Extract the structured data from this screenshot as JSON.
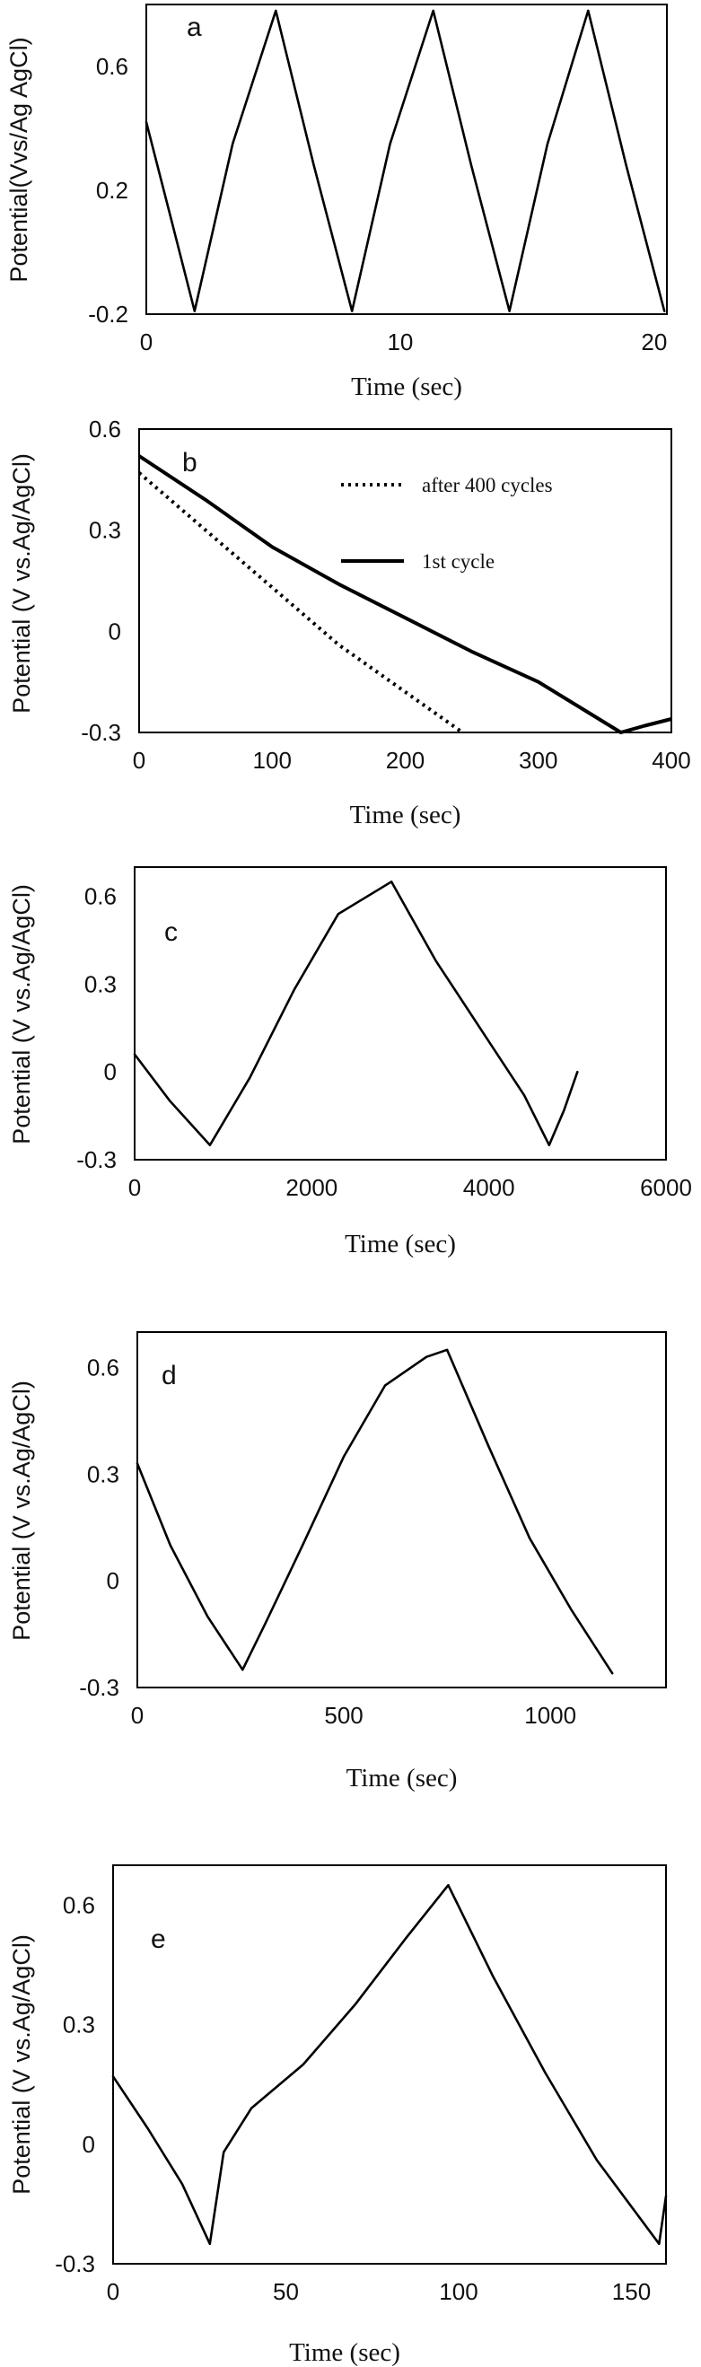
{
  "chart_data": [
    {
      "type": "line",
      "panel_label": "a",
      "xlabel": "Time (sec)",
      "ylabel": "Potential(Vvs/Ag AgCl)",
      "xlim": [
        0,
        20.5
      ],
      "ylim": [
        -0.2,
        0.8
      ],
      "xticks": [
        "0",
        "10",
        "20"
      ],
      "xtick_values": [
        0,
        10,
        20
      ],
      "yticks": [
        "0.6",
        "0.2",
        "-0.2"
      ],
      "ytick_values": [
        0.6,
        0.2,
        -0.2
      ],
      "grid": false,
      "series": [
        {
          "style": "solid",
          "x": [
            0,
            1.0,
            1.9,
            3.4,
            5.1,
            6.6,
            8.1,
            9.6,
            11.3,
            12.8,
            14.3,
            15.8,
            17.4,
            18.9,
            20.4
          ],
          "y": [
            0.42,
            0.1,
            -0.19,
            0.35,
            0.78,
            0.28,
            -0.19,
            0.35,
            0.78,
            0.28,
            -0.19,
            0.35,
            0.78,
            0.28,
            -0.19
          ]
        }
      ]
    },
    {
      "type": "line",
      "panel_label": "b",
      "xlabel": "Time (sec)",
      "ylabel": "Potential (V vs.Ag/AgCl)",
      "xlim": [
        0,
        400
      ],
      "ylim": [
        -0.3,
        0.6
      ],
      "xticks": [
        "0",
        "100",
        "200",
        "300",
        "400"
      ],
      "xtick_values": [
        0,
        100,
        200,
        300,
        400
      ],
      "yticks": [
        "0.6",
        "0.3",
        "0",
        "-0.3"
      ],
      "ytick_values": [
        0.6,
        0.3,
        0,
        -0.3
      ],
      "grid": false,
      "legend": [
        "after 400 cycles",
        "1st cycle"
      ],
      "legend_position": "top-right",
      "series": [
        {
          "name": "after 400 cycles",
          "style": "dotted",
          "x": [
            0,
            50,
            100,
            150,
            200,
            243
          ],
          "y": [
            0.47,
            0.3,
            0.13,
            -0.04,
            -0.18,
            -0.3
          ]
        },
        {
          "name": "1st cycle",
          "style": "solid",
          "x": [
            0,
            50,
            100,
            150,
            200,
            250,
            300,
            362,
            380,
            400
          ],
          "y": [
            0.52,
            0.39,
            0.25,
            0.14,
            0.04,
            -0.06,
            -0.15,
            -0.3,
            -0.28,
            -0.26
          ]
        }
      ]
    },
    {
      "type": "line",
      "panel_label": "c",
      "xlabel": "Time (sec)",
      "ylabel": "Potential (V vs.Ag/AgCl)",
      "xlim": [
        0,
        6000
      ],
      "ylim": [
        -0.3,
        0.7
      ],
      "xticks": [
        "0",
        "2000",
        "4000",
        "6000"
      ],
      "xtick_values": [
        0,
        2000,
        4000,
        6000
      ],
      "yticks": [
        "0.6",
        "0.3",
        "0",
        "-0.3"
      ],
      "ytick_values": [
        0.6,
        0.3,
        0,
        -0.3
      ],
      "grid": false,
      "series": [
        {
          "style": "solid",
          "x": [
            0,
            400,
            850,
            1300,
            1800,
            2300,
            2900,
            3400,
            3900,
            4400,
            4680,
            4850,
            5000
          ],
          "y": [
            0.06,
            -0.1,
            -0.25,
            -0.02,
            0.28,
            0.54,
            0.65,
            0.38,
            0.15,
            -0.08,
            -0.25,
            -0.13,
            0.0
          ]
        }
      ]
    },
    {
      "type": "line",
      "panel_label": "d",
      "xlabel": "Time (sec)",
      "ylabel": "Potential (V vs.Ag/AgCl)",
      "xlim": [
        0,
        1280
      ],
      "ylim": [
        -0.3,
        0.7
      ],
      "xticks": [
        "0",
        "500",
        "1000"
      ],
      "xtick_values": [
        0,
        500,
        1000
      ],
      "yticks": [
        "0.6",
        "0.3",
        "0",
        "-0.3"
      ],
      "ytick_values": [
        0.6,
        0.3,
        0,
        -0.3
      ],
      "grid": false,
      "series": [
        {
          "style": "solid",
          "x": [
            0,
            80,
            170,
            255,
            310,
            400,
            500,
            600,
            700,
            750,
            850,
            950,
            1050,
            1150
          ],
          "y": [
            0.33,
            0.1,
            -0.1,
            -0.25,
            -0.12,
            0.1,
            0.35,
            0.55,
            0.63,
            0.65,
            0.38,
            0.12,
            -0.08,
            -0.26
          ]
        }
      ]
    },
    {
      "type": "line",
      "panel_label": "e",
      "xlabel": "Time (sec)",
      "ylabel": "Potential (V vs.Ag/AgCl)",
      "xlim": [
        0,
        160
      ],
      "ylim": [
        -0.3,
        0.7
      ],
      "xticks": [
        "0",
        "50",
        "100",
        "150"
      ],
      "xtick_values": [
        0,
        50,
        100,
        150
      ],
      "yticks": [
        "0.6",
        "0.3",
        "0",
        "-0.3"
      ],
      "ytick_values": [
        0.6,
        0.3,
        0,
        -0.3
      ],
      "grid": false,
      "series": [
        {
          "style": "solid",
          "x": [
            0,
            10,
            20,
            28,
            32,
            40,
            55,
            70,
            85,
            97,
            110,
            125,
            140,
            158,
            160
          ],
          "y": [
            0.17,
            0.04,
            -0.1,
            -0.25,
            -0.02,
            0.09,
            0.2,
            0.35,
            0.52,
            0.65,
            0.42,
            0.18,
            -0.04,
            -0.25,
            -0.13
          ]
        }
      ]
    }
  ]
}
